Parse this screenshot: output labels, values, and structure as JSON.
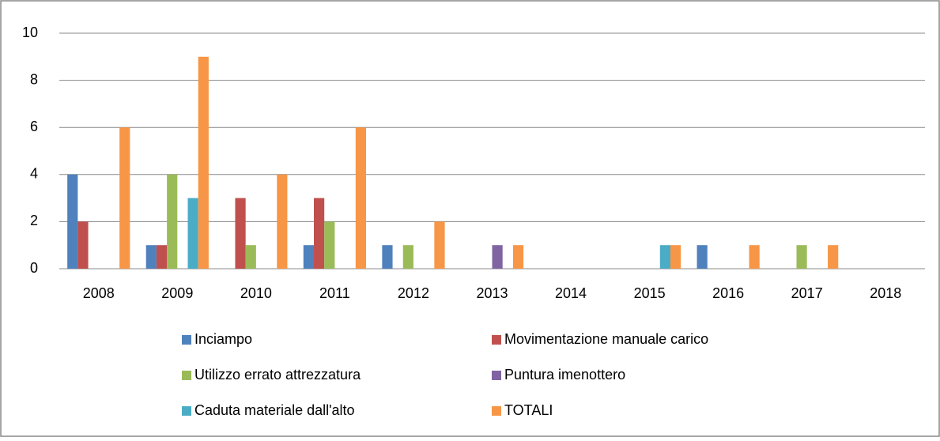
{
  "chart_data": {
    "type": "bar",
    "categories": [
      "2008",
      "2009",
      "2010",
      "2011",
      "2012",
      "2013",
      "2014",
      "2015",
      "2016",
      "2017",
      "2018"
    ],
    "series": [
      {
        "name": "Inciampo",
        "color": "#4f81bd",
        "values": [
          4,
          1,
          0,
          1,
          1,
          0,
          0,
          0,
          1,
          0,
          0
        ]
      },
      {
        "name": "Movimentazione manuale carico",
        "color": "#c0504d",
        "values": [
          2,
          1,
          3,
          3,
          0,
          0,
          0,
          0,
          0,
          0,
          0
        ]
      },
      {
        "name": "Utilizzo errato attrezzatura",
        "color": "#9bbb59",
        "values": [
          0,
          4,
          1,
          2,
          1,
          0,
          0,
          0,
          0,
          1,
          0
        ]
      },
      {
        "name": "Puntura imenottero",
        "color": "#8064a2",
        "values": [
          0,
          0,
          0,
          0,
          0,
          1,
          0,
          0,
          0,
          0,
          0
        ]
      },
      {
        "name": "Caduta materiale dall'alto",
        "color": "#4bacc6",
        "values": [
          0,
          3,
          0,
          0,
          0,
          0,
          0,
          1,
          0,
          0,
          0
        ]
      },
      {
        "name": "TOTALI",
        "color": "#f79646",
        "values": [
          6,
          9,
          4,
          6,
          2,
          1,
          0,
          1,
          1,
          1,
          0
        ]
      }
    ],
    "ylim": [
      0,
      10
    ],
    "yticks": [
      0,
      2,
      4,
      6,
      8,
      10
    ],
    "grid": true,
    "legend": "bottom"
  }
}
